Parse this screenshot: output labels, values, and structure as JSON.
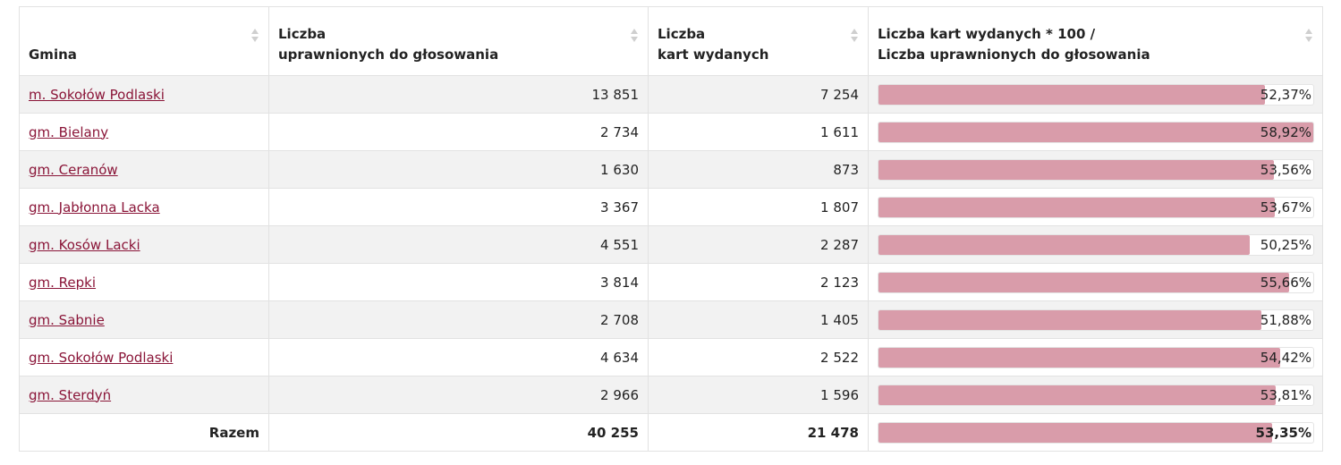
{
  "table": {
    "headers": [
      {
        "lines": [
          "",
          "Gmina"
        ]
      },
      {
        "lines": [
          "Liczba",
          "uprawnionych do głosowania"
        ]
      },
      {
        "lines": [
          "Liczba",
          "kart wydanych"
        ]
      },
      {
        "lines": [
          "Liczba kart wydanych * 100 /",
          "Liczba uprawnionych do głosowania"
        ]
      }
    ],
    "rows": [
      {
        "gmina": "m. Sokołów Podlaski",
        "uprawnieni": "13 851",
        "karty": "7 254",
        "pct_label": "52,37%",
        "pct": 52.37
      },
      {
        "gmina": "gm. Bielany",
        "uprawnieni": "2 734",
        "karty": "1 611",
        "pct_label": "58,92%",
        "pct": 58.92
      },
      {
        "gmina": "gm. Ceranów",
        "uprawnieni": "1 630",
        "karty": "873",
        "pct_label": "53,56%",
        "pct": 53.56
      },
      {
        "gmina": "gm. Jabłonna Lacka",
        "uprawnieni": "3 367",
        "karty": "1 807",
        "pct_label": "53,67%",
        "pct": 53.67
      },
      {
        "gmina": "gm. Kosów Lacki",
        "uprawnieni": "4 551",
        "karty": "2 287",
        "pct_label": "50,25%",
        "pct": 50.25
      },
      {
        "gmina": "gm. Repki",
        "uprawnieni": "3 814",
        "karty": "2 123",
        "pct_label": "55,66%",
        "pct": 55.66
      },
      {
        "gmina": "gm. Sabnie",
        "uprawnieni": "2 708",
        "karty": "1 405",
        "pct_label": "51,88%",
        "pct": 51.88
      },
      {
        "gmina": "gm. Sokołów Podlaski",
        "uprawnieni": "4 634",
        "karty": "2 522",
        "pct_label": "54,42%",
        "pct": 54.42
      },
      {
        "gmina": "gm. Sterdyń",
        "uprawnieni": "2 966",
        "karty": "1 596",
        "pct_label": "53,81%",
        "pct": 53.81
      }
    ],
    "total": {
      "label": "Razem",
      "uprawnieni": "40 255",
      "karty": "21 478",
      "pct_label": "53,35%",
      "pct": 53.35
    },
    "bar_scale_max_pct": 58.92
  },
  "colors": {
    "link": "#8a1538",
    "bar_fill": "#d99caa",
    "row_stripe": "#f2f2f2"
  }
}
